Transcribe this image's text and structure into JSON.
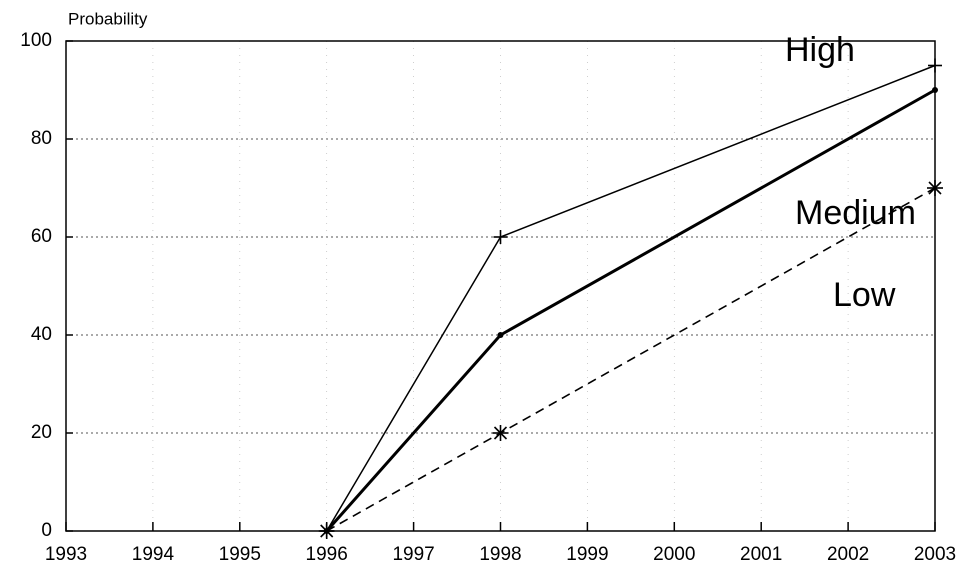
{
  "chart_data": {
    "type": "line",
    "y_label": "Probability",
    "x": [
      1996,
      1998,
      2003
    ],
    "series": [
      {
        "name": "High",
        "color": "#000000",
        "values": [
          0,
          60,
          95
        ]
      },
      {
        "name": "Medium",
        "color": "#000000",
        "values": [
          0,
          40,
          90
        ]
      },
      {
        "name": "Low",
        "color": "#000000",
        "values": [
          0,
          20,
          70
        ]
      }
    ],
    "xlim": [
      1993,
      2003
    ],
    "xticks": [
      1993,
      1994,
      1995,
      1996,
      1997,
      1998,
      1999,
      2000,
      2001,
      2002,
      2003
    ],
    "ylim": [
      0,
      100
    ],
    "yticks": [
      0,
      20,
      40,
      60,
      80,
      100
    ],
    "grid": true
  }
}
